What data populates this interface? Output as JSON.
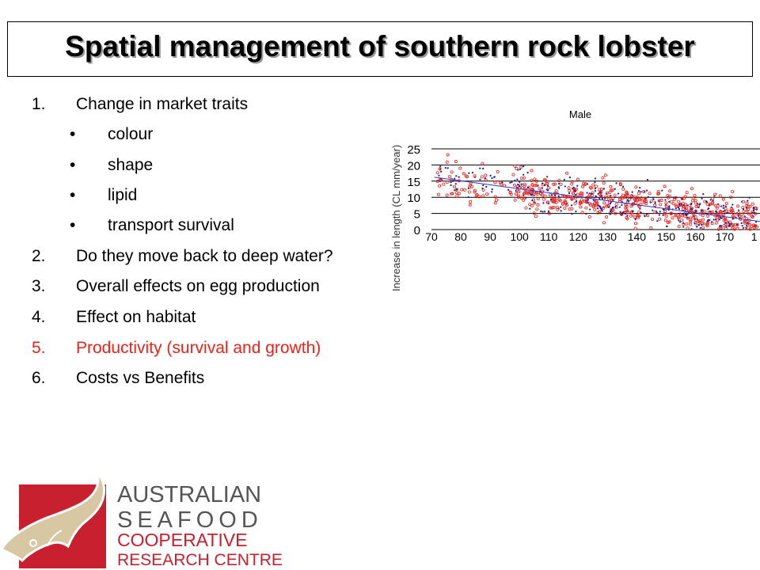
{
  "title": "Spatial management of southern rock lobster",
  "list": [
    {
      "num": "1.",
      "text": "Change in market traits",
      "color": "#000000"
    },
    {
      "bullet": "•",
      "text": "colour"
    },
    {
      "bullet": "•",
      "text": "shape"
    },
    {
      "bullet": "•",
      "text": "lipid"
    },
    {
      "bullet": "•",
      "text": "transport survival"
    },
    {
      "num": "2.",
      "text": "Do they move back to deep water?",
      "color": "#000000"
    },
    {
      "num": "3.",
      "text": "Overall effects on egg production",
      "color": "#000000"
    },
    {
      "num": "4.",
      "text": "Effect on habitat",
      "color": "#000000"
    },
    {
      "num": "5.",
      "text": "Productivity (survival and growth)",
      "color": "#e8241c"
    },
    {
      "num": "6.",
      "text": "Costs vs Benefits",
      "color": "#000000"
    }
  ],
  "chart_data": {
    "type": "scatter",
    "title": "Male",
    "xlabel": "",
    "ylabel": "Increase in length (CL mm/year)",
    "x_ticks": [
      "70",
      "80",
      "90",
      "100",
      "110",
      "120",
      "130",
      "140",
      "150",
      "160",
      "170",
      "1"
    ],
    "y_ticks": [
      "0",
      "5",
      "10",
      "15",
      "20",
      "25"
    ],
    "xlim": [
      70,
      182
    ],
    "ylim": [
      0,
      25
    ],
    "grid": true,
    "series": [
      {
        "color": "#e8241c",
        "marker": "open-circle"
      },
      {
        "color": "#1a1a8c",
        "marker": "diamond"
      }
    ],
    "trend_line": {
      "color": "#3333cc",
      "x": [
        71,
        182
      ],
      "y": [
        16.2,
        2.5
      ]
    }
  },
  "logo": {
    "lines": [
      "AUSTRALIAN",
      "SEAFOOD",
      "COOPERATIVE",
      "RESEARCH CENTRE"
    ],
    "colors": {
      "gray": "#555555",
      "red": "#c8202e",
      "square": "#c8202e"
    }
  }
}
